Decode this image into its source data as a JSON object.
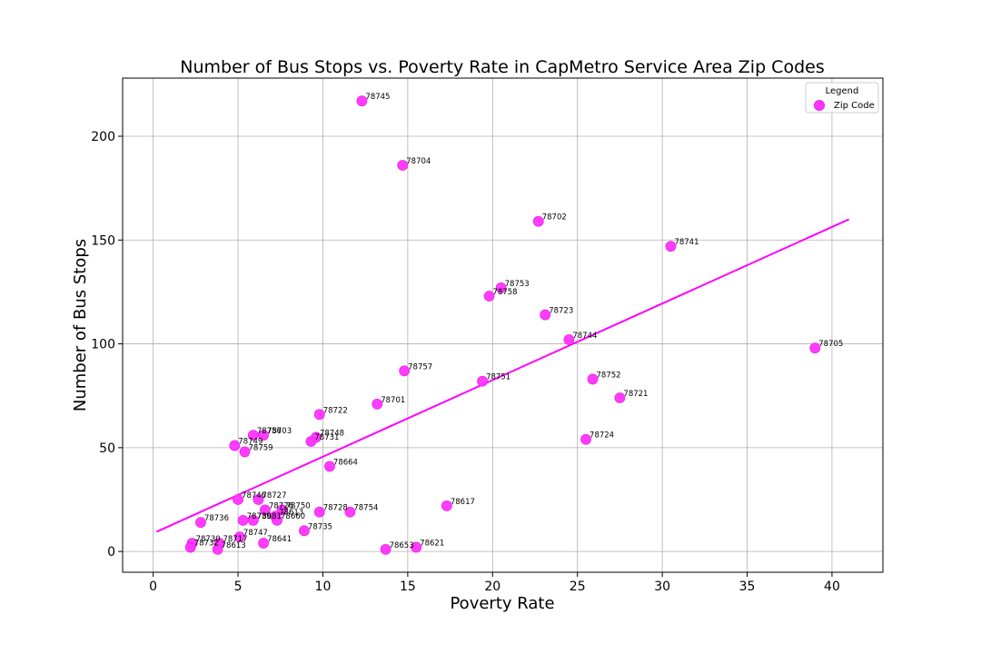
{
  "chart_data": {
    "type": "scatter",
    "title": "Number of Bus Stops vs. Poverty Rate in CapMetro Service Area Zip Codes",
    "xlabel": "Poverty Rate",
    "ylabel": "Number of Bus Stops",
    "xlim": [
      -1.8,
      43
    ],
    "ylim": [
      -10,
      228
    ],
    "xticks": [
      0,
      5,
      10,
      15,
      20,
      25,
      30,
      35,
      40
    ],
    "yticks": [
      0,
      50,
      100,
      150,
      200
    ],
    "grid": true,
    "legend": {
      "title": "Legend",
      "placement": "top-right",
      "entries": [
        "Zip Code"
      ]
    },
    "colors": {
      "points": "#ff33ff",
      "point_edge": "#ee22ee",
      "trendline": "#ff00ff",
      "grid": "#b0b0b0"
    },
    "trendline": {
      "x": [
        0.2,
        41
      ],
      "y": [
        9.5,
        160
      ]
    },
    "points": [
      {
        "zip": "78745",
        "x": 12.3,
        "y": 217
      },
      {
        "zip": "78704",
        "x": 14.7,
        "y": 186
      },
      {
        "zip": "78702",
        "x": 22.7,
        "y": 159
      },
      {
        "zip": "78741",
        "x": 30.5,
        "y": 147
      },
      {
        "zip": "78753",
        "x": 20.5,
        "y": 127
      },
      {
        "zip": "78758",
        "x": 19.8,
        "y": 123
      },
      {
        "zip": "78723",
        "x": 23.1,
        "y": 114
      },
      {
        "zip": "78744",
        "x": 24.5,
        "y": 102
      },
      {
        "zip": "78705",
        "x": 39.0,
        "y": 98
      },
      {
        "zip": "78757",
        "x": 14.8,
        "y": 87
      },
      {
        "zip": "78752",
        "x": 25.9,
        "y": 83
      },
      {
        "zip": "78751",
        "x": 19.4,
        "y": 82
      },
      {
        "zip": "78721",
        "x": 27.5,
        "y": 74
      },
      {
        "zip": "78701",
        "x": 13.2,
        "y": 71
      },
      {
        "zip": "78722",
        "x": 9.8,
        "y": 66
      },
      {
        "zip": "78756",
        "x": 5.9,
        "y": 56
      },
      {
        "zip": "78703",
        "x": 6.5,
        "y": 56
      },
      {
        "zip": "78748",
        "x": 9.6,
        "y": 55
      },
      {
        "zip": "78731",
        "x": 9.3,
        "y": 53
      },
      {
        "zip": "78724",
        "x": 25.5,
        "y": 54
      },
      {
        "zip": "78749",
        "x": 4.8,
        "y": 51
      },
      {
        "zip": "78759",
        "x": 5.4,
        "y": 48
      },
      {
        "zip": "78664",
        "x": 10.4,
        "y": 41
      },
      {
        "zip": "78746",
        "x": 5.0,
        "y": 25
      },
      {
        "zip": "78727",
        "x": 6.2,
        "y": 25
      },
      {
        "zip": "78617",
        "x": 17.3,
        "y": 22
      },
      {
        "zip": "78726",
        "x": 6.6,
        "y": 20
      },
      {
        "zip": "78750",
        "x": 7.6,
        "y": 20
      },
      {
        "zip": "78728",
        "x": 9.8,
        "y": 19
      },
      {
        "zip": "78754",
        "x": 11.6,
        "y": 19
      },
      {
        "zip": "78613",
        "x": 7.2,
        "y": 17
      },
      {
        "zip": "78739",
        "x": 5.3,
        "y": 15
      },
      {
        "zip": "78681",
        "x": 5.9,
        "y": 15
      },
      {
        "zip": "78660",
        "x": 7.3,
        "y": 15
      },
      {
        "zip": "78736",
        "x": 2.8,
        "y": 14
      },
      {
        "zip": "78735",
        "x": 8.9,
        "y": 10
      },
      {
        "zip": "78747",
        "x": 5.1,
        "y": 7
      },
      {
        "zip": "78641",
        "x": 6.5,
        "y": 4
      },
      {
        "zip": "78730",
        "x": 2.3,
        "y": 4
      },
      {
        "zip": "78717",
        "x": 3.9,
        "y": 4
      },
      {
        "zip": "78732",
        "x": 2.2,
        "y": 2
      },
      {
        "zip": "78613",
        "x": 3.8,
        "y": 1
      },
      {
        "zip": "78653",
        "x": 13.7,
        "y": 1
      },
      {
        "zip": "78621",
        "x": 15.5,
        "y": 2
      }
    ]
  }
}
